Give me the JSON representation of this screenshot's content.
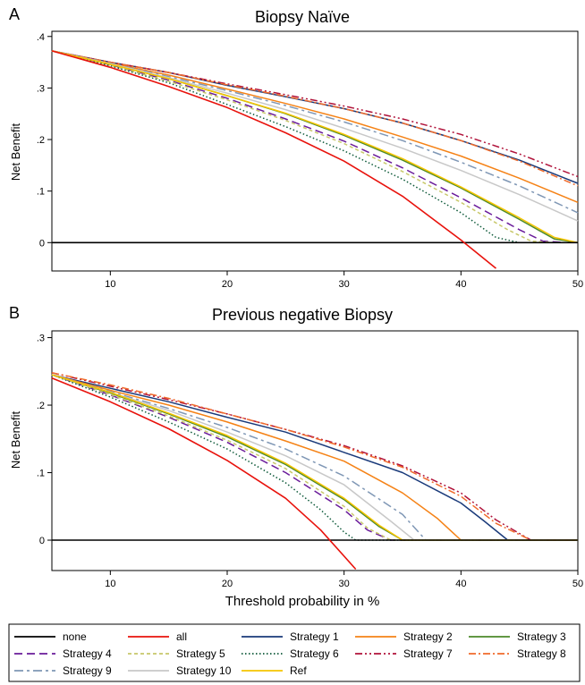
{
  "figure": {
    "xlabel": "Threshold probability in %",
    "legend_position": "bottom"
  },
  "chart_data": [
    {
      "type": "line",
      "panel_label": "A",
      "title": "Biopsy Naïve",
      "xlabel": "",
      "ylabel": "Net Benefit",
      "xlim": [
        5,
        50
      ],
      "ylim": [
        -0.055,
        0.41
      ],
      "x_ticks": [
        "10",
        "20",
        "30",
        "40",
        "50"
      ],
      "y_ticks": [
        ".4",
        ".3",
        ".2",
        ".1",
        "0"
      ],
      "grid": false,
      "series": [
        {
          "name": "none",
          "x": [
            5,
            50
          ],
          "y": [
            0,
            0
          ]
        },
        {
          "name": "all",
          "x": [
            5,
            10,
            15,
            20,
            25,
            30,
            35,
            40,
            43
          ],
          "y": [
            0.372,
            0.34,
            0.303,
            0.262,
            0.213,
            0.158,
            0.09,
            0.005,
            -0.05
          ]
        },
        {
          "name": "Strategy 1",
          "x": [
            5,
            10,
            15,
            20,
            25,
            30,
            35,
            40,
            45,
            50
          ],
          "y": [
            0.372,
            0.35,
            0.33,
            0.305,
            0.283,
            0.26,
            0.232,
            0.198,
            0.16,
            0.115
          ]
        },
        {
          "name": "Strategy 2",
          "x": [
            5,
            10,
            15,
            20,
            25,
            30,
            35,
            40,
            45,
            50
          ],
          "y": [
            0.372,
            0.348,
            0.325,
            0.298,
            0.27,
            0.24,
            0.205,
            0.168,
            0.125,
            0.078
          ]
        },
        {
          "name": "Strategy 3",
          "x": [
            5,
            10,
            15,
            20,
            25,
            30,
            35,
            40,
            45,
            48,
            50
          ],
          "y": [
            0.372,
            0.346,
            0.318,
            0.285,
            0.25,
            0.208,
            0.16,
            0.106,
            0.045,
            0.007,
            0.0
          ]
        },
        {
          "name": "Strategy 4",
          "x": [
            5,
            10,
            15,
            20,
            25,
            30,
            35,
            40,
            45,
            47,
            49
          ],
          "y": [
            0.372,
            0.345,
            0.315,
            0.28,
            0.24,
            0.197,
            0.145,
            0.087,
            0.025,
            0.003,
            0.0
          ]
        },
        {
          "name": "Strategy 5",
          "x": [
            5,
            10,
            15,
            20,
            25,
            30,
            35,
            40,
            44,
            46,
            48
          ],
          "y": [
            0.372,
            0.344,
            0.313,
            0.277,
            0.237,
            0.192,
            0.138,
            0.078,
            0.025,
            0.003,
            0.0
          ]
        },
        {
          "name": "Strategy 6",
          "x": [
            5,
            10,
            15,
            20,
            25,
            30,
            35,
            40,
            43,
            45
          ],
          "y": [
            0.372,
            0.343,
            0.31,
            0.268,
            0.225,
            0.178,
            0.123,
            0.058,
            0.01,
            0.0
          ]
        },
        {
          "name": "Strategy 7",
          "x": [
            5,
            10,
            15,
            20,
            25,
            30,
            35,
            40,
            45,
            50
          ],
          "y": [
            0.372,
            0.35,
            0.33,
            0.308,
            0.287,
            0.265,
            0.24,
            0.21,
            0.172,
            0.128
          ]
        },
        {
          "name": "Strategy 8",
          "x": [
            5,
            10,
            15,
            20,
            25,
            30,
            35,
            40,
            45,
            50
          ],
          "y": [
            0.372,
            0.35,
            0.33,
            0.306,
            0.284,
            0.26,
            0.232,
            0.198,
            0.158,
            0.11
          ]
        },
        {
          "name": "Strategy 9",
          "x": [
            5,
            10,
            15,
            20,
            25,
            30,
            35,
            40,
            45,
            50
          ],
          "y": [
            0.372,
            0.348,
            0.322,
            0.295,
            0.266,
            0.234,
            0.198,
            0.156,
            0.11,
            0.058
          ]
        },
        {
          "name": "Strategy 10",
          "x": [
            5,
            10,
            15,
            20,
            25,
            30,
            35,
            40,
            45,
            50
          ],
          "y": [
            0.372,
            0.347,
            0.32,
            0.29,
            0.258,
            0.222,
            0.183,
            0.14,
            0.093,
            0.042
          ]
        },
        {
          "name": "Ref",
          "x": [
            5,
            10,
            15,
            20,
            25,
            30,
            35,
            40,
            45,
            48,
            50
          ],
          "y": [
            0.372,
            0.346,
            0.318,
            0.285,
            0.251,
            0.21,
            0.163,
            0.108,
            0.048,
            0.01,
            0.0
          ]
        }
      ]
    },
    {
      "type": "line",
      "panel_label": "B",
      "title": "Previous negative Biopsy",
      "xlabel": "Threshold probability in %",
      "ylabel": "Net Benefit",
      "xlim": [
        5,
        50
      ],
      "ylim": [
        -0.045,
        0.31
      ],
      "x_ticks": [
        "10",
        "20",
        "30",
        "40",
        "50"
      ],
      "y_ticks": [
        ".3",
        ".2",
        ".1",
        "0"
      ],
      "grid": false,
      "series": [
        {
          "name": "none",
          "x": [
            5,
            50
          ],
          "y": [
            0,
            0
          ]
        },
        {
          "name": "all",
          "x": [
            5,
            10,
            15,
            20,
            25,
            28,
            31
          ],
          "y": [
            0.24,
            0.205,
            0.165,
            0.118,
            0.062,
            0.015,
            -0.043
          ]
        },
        {
          "name": "Strategy 1",
          "x": [
            5,
            10,
            15,
            20,
            25,
            30,
            35,
            40,
            42,
            44,
            50
          ],
          "y": [
            0.245,
            0.225,
            0.205,
            0.182,
            0.16,
            0.13,
            0.1,
            0.055,
            0.028,
            0.0,
            0.0
          ]
        },
        {
          "name": "Strategy 2",
          "x": [
            5,
            10,
            15,
            20,
            25,
            30,
            35,
            38,
            40,
            50
          ],
          "y": [
            0.245,
            0.222,
            0.2,
            0.175,
            0.147,
            0.117,
            0.07,
            0.032,
            0.0,
            0.0
          ]
        },
        {
          "name": "Strategy 3",
          "x": [
            5,
            10,
            15,
            20,
            25,
            30,
            33,
            35,
            50
          ],
          "y": [
            0.245,
            0.218,
            0.187,
            0.153,
            0.112,
            0.06,
            0.02,
            0.0,
            0.0
          ]
        },
        {
          "name": "Strategy 4",
          "x": [
            5,
            10,
            15,
            20,
            25,
            30,
            32,
            34,
            50
          ],
          "y": [
            0.245,
            0.215,
            0.182,
            0.145,
            0.1,
            0.045,
            0.015,
            0.0,
            0.0
          ]
        },
        {
          "name": "Strategy 5",
          "x": [
            5,
            10,
            15,
            20,
            25,
            30,
            32,
            34,
            50
          ],
          "y": [
            0.245,
            0.216,
            0.184,
            0.148,
            0.106,
            0.05,
            0.018,
            0.0,
            0.0
          ]
        },
        {
          "name": "Strategy 6",
          "x": [
            5,
            10,
            15,
            20,
            25,
            28,
            30,
            31,
            50
          ],
          "y": [
            0.245,
            0.212,
            0.175,
            0.135,
            0.085,
            0.045,
            0.012,
            0.0,
            0.0
          ]
        },
        {
          "name": "Strategy 7",
          "x": [
            5,
            10,
            15,
            20,
            25,
            30,
            35,
            40,
            43,
            46,
            50
          ],
          "y": [
            0.248,
            0.228,
            0.208,
            0.187,
            0.164,
            0.14,
            0.11,
            0.07,
            0.03,
            0.0,
            0.0
          ]
        },
        {
          "name": "Strategy 8",
          "x": [
            5,
            10,
            15,
            20,
            25,
            30,
            35,
            40,
            43,
            46,
            50
          ],
          "y": [
            0.248,
            0.23,
            0.21,
            0.187,
            0.164,
            0.138,
            0.108,
            0.065,
            0.025,
            0.0,
            0.0
          ]
        },
        {
          "name": "Strategy 9",
          "x": [
            5,
            10,
            15,
            20,
            25,
            30,
            35,
            37,
            50
          ],
          "y": [
            0.245,
            0.22,
            0.195,
            0.167,
            0.135,
            0.095,
            0.038,
            0.0,
            0.0
          ]
        },
        {
          "name": "Strategy 10",
          "x": [
            5,
            10,
            15,
            20,
            25,
            30,
            34,
            36,
            50
          ],
          "y": [
            0.245,
            0.219,
            0.192,
            0.16,
            0.125,
            0.082,
            0.028,
            0.0,
            0.0
          ]
        },
        {
          "name": "Ref",
          "x": [
            5,
            10,
            15,
            20,
            25,
            30,
            33,
            35,
            50
          ],
          "y": [
            0.245,
            0.219,
            0.188,
            0.155,
            0.114,
            0.062,
            0.022,
            0.0,
            0.0
          ]
        }
      ]
    }
  ],
  "legend": {
    "items": [
      {
        "name": "none",
        "color": "#000000",
        "dash": "solid"
      },
      {
        "name": "all",
        "color": "#e8120c",
        "dash": "solid"
      },
      {
        "name": "Strategy 1",
        "color": "#1a3a7a",
        "dash": "solid"
      },
      {
        "name": "Strategy 2",
        "color": "#f58216",
        "dash": "solid"
      },
      {
        "name": "Strategy 3",
        "color": "#4c8a2a",
        "dash": "solid"
      },
      {
        "name": "Strategy 4",
        "color": "#6a1b9a",
        "dash": "longdash"
      },
      {
        "name": "Strategy 5",
        "color": "#c8c86a",
        "dash": "shortdash"
      },
      {
        "name": "Strategy 6",
        "color": "#0e5a3a",
        "dash": "dot"
      },
      {
        "name": "Strategy 7",
        "color": "#b0123a",
        "dash": "dashdotdot"
      },
      {
        "name": "Strategy 8",
        "color": "#f06a2a",
        "dash": "dashdot"
      },
      {
        "name": "Strategy 9",
        "color": "#7f97b5",
        "dash": "longdashdot"
      },
      {
        "name": "Strategy 10",
        "color": "#c8c8c8",
        "dash": "solid"
      },
      {
        "name": "Ref",
        "color": "#f5c400",
        "dash": "solid"
      }
    ]
  }
}
